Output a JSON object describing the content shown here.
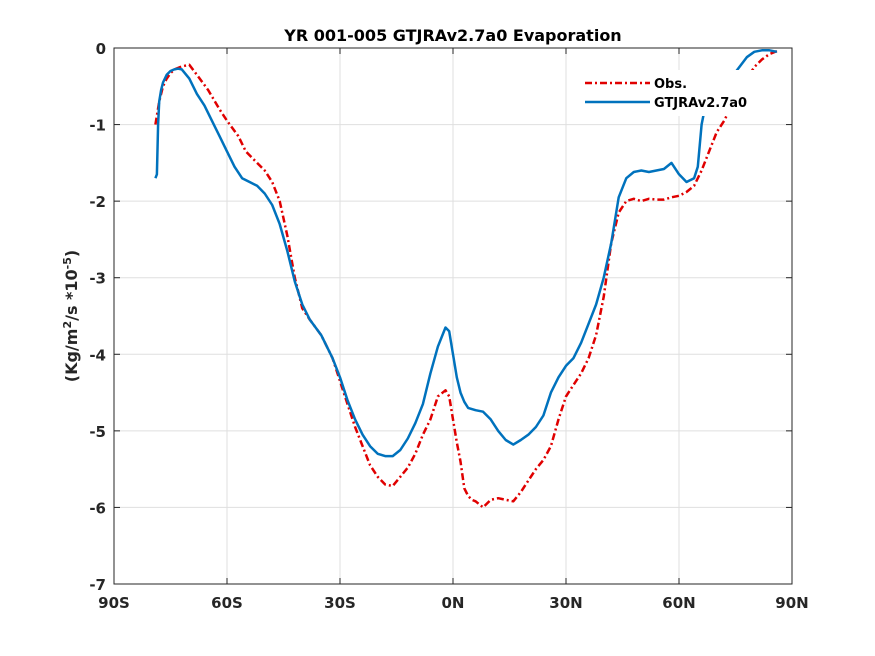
{
  "chart_data": {
    "type": "line",
    "title": "YR 001-005 GTJRAv2.7a0 Evaporation",
    "xlabel": "",
    "ylabel_parts": [
      "(Kg/m",
      "2",
      "/s *10",
      "-5",
      ")"
    ],
    "xlim": [
      -90,
      90
    ],
    "ylim": [
      -7,
      0
    ],
    "xticks": [
      -90,
      -60,
      -30,
      0,
      30,
      60,
      90
    ],
    "xtick_labels": [
      "90S",
      "60S",
      "30S",
      "0N",
      "30N",
      "60N",
      "90N"
    ],
    "yticks": [
      0,
      -1,
      -2,
      -3,
      -4,
      -5,
      -6,
      -7
    ],
    "ytick_labels": [
      "0",
      "-1",
      "-2",
      "-3",
      "-4",
      "-5",
      "-6",
      "-7"
    ],
    "grid": true,
    "legend_position": "top-right",
    "series": [
      {
        "name": "Obs.",
        "color": "#e00000",
        "style": "dash-dot",
        "x": [
          -79,
          -78,
          -77,
          -76,
          -75,
          -74,
          -72,
          -70,
          -68,
          -65,
          -62,
          -60,
          -57,
          -55,
          -52,
          -50,
          -48,
          -46,
          -44,
          -42,
          -40,
          -38,
          -35,
          -32,
          -30,
          -28,
          -26,
          -24,
          -22,
          -20,
          -18,
          -16,
          -14,
          -12,
          -10,
          -8,
          -6,
          -4,
          -2,
          -1,
          0,
          1,
          2,
          3,
          4,
          5,
          6,
          8,
          10,
          12,
          14,
          16,
          18,
          20,
          22,
          24,
          26,
          28,
          30,
          32,
          34,
          36,
          38,
          40,
          42,
          44,
          46,
          48,
          50,
          52,
          54,
          56,
          58,
          60,
          62,
          64,
          66,
          68,
          70,
          72,
          74,
          76,
          78,
          80,
          82,
          84,
          86
        ],
        "y": [
          -1.0,
          -0.7,
          -0.5,
          -0.4,
          -0.33,
          -0.28,
          -0.24,
          -0.22,
          -0.35,
          -0.55,
          -0.8,
          -0.95,
          -1.15,
          -1.35,
          -1.5,
          -1.6,
          -1.75,
          -2.0,
          -2.45,
          -3.0,
          -3.4,
          -3.55,
          -3.75,
          -4.05,
          -4.35,
          -4.65,
          -4.95,
          -5.2,
          -5.45,
          -5.6,
          -5.7,
          -5.72,
          -5.6,
          -5.48,
          -5.3,
          -5.05,
          -4.85,
          -4.55,
          -4.47,
          -4.55,
          -4.85,
          -5.15,
          -5.4,
          -5.75,
          -5.85,
          -5.9,
          -5.92,
          -6.0,
          -5.9,
          -5.88,
          -5.9,
          -5.92,
          -5.8,
          -5.65,
          -5.5,
          -5.38,
          -5.2,
          -4.85,
          -4.55,
          -4.4,
          -4.25,
          -4.05,
          -3.75,
          -3.25,
          -2.55,
          -2.15,
          -2.0,
          -1.97,
          -2.0,
          -1.97,
          -1.98,
          -1.98,
          -1.95,
          -1.93,
          -1.88,
          -1.8,
          -1.6,
          -1.35,
          -1.1,
          -0.95,
          -0.75,
          -0.55,
          -0.4,
          -0.25,
          -0.15,
          -0.08,
          -0.04
        ]
      },
      {
        "name": "GTJRAv2.7a0",
        "color": "#0072bd",
        "style": "solid",
        "x": [
          -79,
          -78.6,
          -78.3,
          -78,
          -77.5,
          -77,
          -76,
          -75,
          -74,
          -73,
          -72,
          -70,
          -68,
          -66,
          -64,
          -62,
          -60,
          -58,
          -56,
          -54,
          -52,
          -50,
          -48,
          -46,
          -44,
          -42,
          -40,
          -38,
          -35,
          -32,
          -30,
          -28,
          -26,
          -24,
          -22,
          -20,
          -18,
          -16,
          -14,
          -12,
          -10,
          -8,
          -6,
          -4,
          -2,
          -1,
          0,
          1,
          2,
          3,
          4,
          6,
          8,
          10,
          12,
          14,
          16,
          18,
          20,
          22,
          24,
          26,
          28,
          30,
          32,
          34,
          36,
          38,
          40,
          42,
          44,
          46,
          48,
          50,
          52,
          54,
          56,
          58,
          60,
          62,
          64,
          65,
          66,
          67,
          68,
          70,
          72,
          74,
          76,
          78,
          80,
          82,
          84,
          86
        ],
        "y": [
          -1.7,
          -1.65,
          -1.0,
          -0.7,
          -0.55,
          -0.45,
          -0.35,
          -0.3,
          -0.28,
          -0.27,
          -0.28,
          -0.4,
          -0.6,
          -0.75,
          -0.95,
          -1.15,
          -1.35,
          -1.55,
          -1.7,
          -1.75,
          -1.8,
          -1.9,
          -2.05,
          -2.3,
          -2.65,
          -3.05,
          -3.35,
          -3.55,
          -3.75,
          -4.05,
          -4.3,
          -4.6,
          -4.85,
          -5.05,
          -5.2,
          -5.3,
          -5.33,
          -5.33,
          -5.25,
          -5.1,
          -4.9,
          -4.65,
          -4.25,
          -3.9,
          -3.65,
          -3.7,
          -4.0,
          -4.3,
          -4.5,
          -4.62,
          -4.7,
          -4.73,
          -4.75,
          -4.85,
          -5.0,
          -5.12,
          -5.18,
          -5.12,
          -5.05,
          -4.95,
          -4.8,
          -4.5,
          -4.3,
          -4.15,
          -4.05,
          -3.85,
          -3.6,
          -3.35,
          -3.0,
          -2.55,
          -1.95,
          -1.7,
          -1.62,
          -1.6,
          -1.62,
          -1.6,
          -1.58,
          -1.5,
          -1.65,
          -1.75,
          -1.7,
          -1.55,
          -1.0,
          -0.75,
          -0.65,
          -0.6,
          -0.5,
          -0.38,
          -0.25,
          -0.12,
          -0.05,
          -0.03,
          -0.03,
          -0.05
        ]
      }
    ]
  }
}
